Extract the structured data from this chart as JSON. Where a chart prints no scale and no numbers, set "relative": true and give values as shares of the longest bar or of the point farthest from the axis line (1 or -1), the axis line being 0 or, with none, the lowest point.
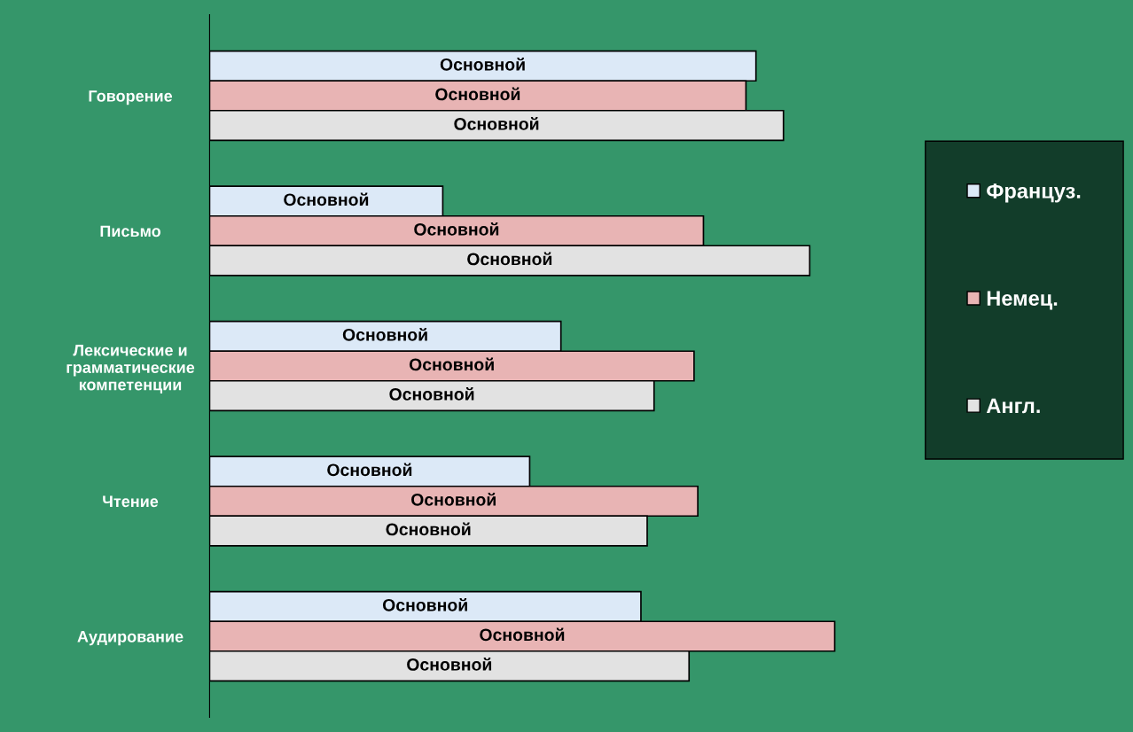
{
  "chart_data": {
    "type": "bar",
    "orientation": "horizontal",
    "relative": true,
    "legend": "right",
    "categories": [
      "Говорение",
      "Письмо",
      "Лексические и\nграмматические\nкомпетенции",
      "Чтение",
      "Аудирование"
    ],
    "series": [
      {
        "name": "Француз.",
        "color": "#dce9f7",
        "values": [
          0.874,
          0.373,
          0.562,
          0.512,
          0.69
        ]
      },
      {
        "name": "Немец.",
        "color": "#e8b4b4",
        "values": [
          0.858,
          0.79,
          0.775,
          0.781,
          1
        ]
      },
      {
        "name": "Англ.",
        "color": "#e2e2e2",
        "values": [
          0.918,
          0.96,
          0.711,
          0.7,
          0.767
        ]
      }
    ],
    "annotations": [
      "Основной",
      "Основной",
      "Основной",
      "Основной",
      "Основной",
      "Основной",
      "Основной",
      "Основной",
      "Основной",
      "Основной",
      "Основной",
      "Основной",
      "Основной",
      "Основной",
      "Основной"
    ]
  }
}
